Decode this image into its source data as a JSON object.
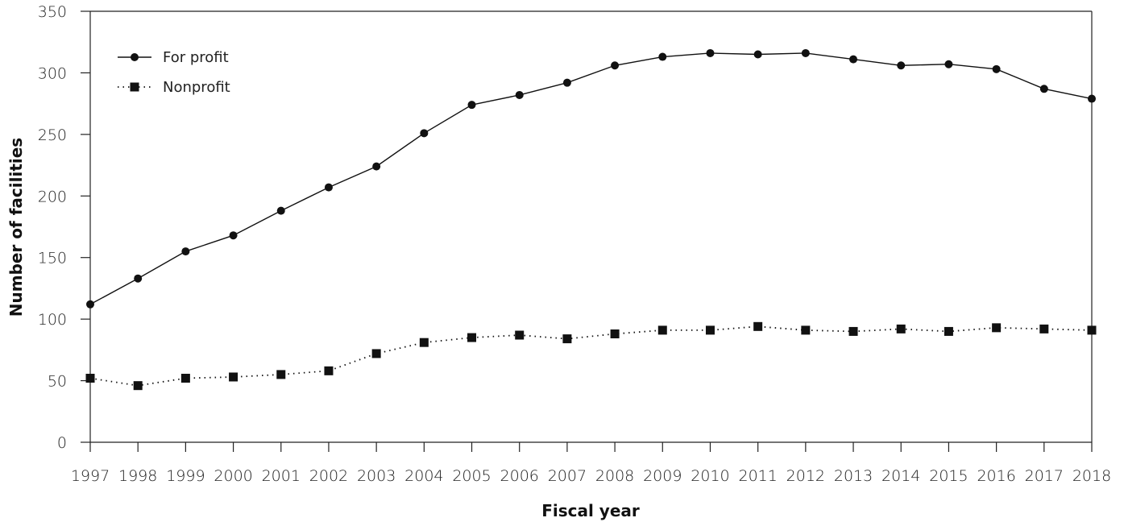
{
  "chart_data": {
    "type": "line",
    "title": "",
    "xlabel": "Fiscal year",
    "ylabel": "Number of facilities",
    "ylim": [
      0,
      350
    ],
    "yticks": [
      "0",
      "50",
      "100",
      "150",
      "200",
      "250",
      "300",
      "350"
    ],
    "categories": [
      "1997",
      "1998",
      "1999",
      "2000",
      "2001",
      "2002",
      "2003",
      "2004",
      "2005",
      "2006",
      "2007",
      "2008",
      "2009",
      "2010",
      "2011",
      "2012",
      "2013",
      "2014",
      "2015",
      "2016",
      "2017",
      "2018"
    ],
    "grid": false,
    "legend_position": "top-left",
    "series": [
      {
        "name": "For profit",
        "marker": "circle",
        "line_style": "solid",
        "color": "#111111",
        "values": [
          112,
          133,
          155,
          168,
          188,
          207,
          224,
          251,
          274,
          282,
          292,
          306,
          313,
          316,
          315,
          316,
          311,
          306,
          307,
          303,
          287,
          279
        ]
      },
      {
        "name": "Nonprofit",
        "marker": "square",
        "line_style": "dotted",
        "color": "#111111",
        "values": [
          52,
          46,
          52,
          53,
          55,
          58,
          72,
          81,
          85,
          87,
          84,
          88,
          91,
          91,
          94,
          91,
          90,
          92,
          90,
          93,
          92,
          91
        ]
      }
    ]
  }
}
